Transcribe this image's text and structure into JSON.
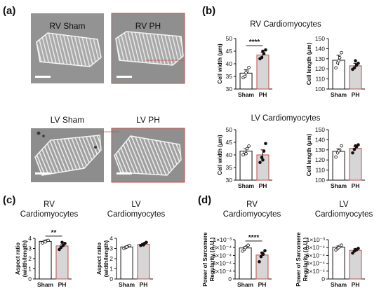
{
  "colors": {
    "sham_fill": "#ffffff",
    "ph_fill": "#d6d6d6",
    "ph_border": "#c0504d",
    "axis": "#111111",
    "micrograph_bg": "#8e8e8e"
  },
  "panels": {
    "a": {
      "letter": "(a)",
      "images": [
        {
          "label": "RV Sham"
        },
        {
          "label": "RV PH"
        },
        {
          "label": "LV Sham"
        },
        {
          "label": "LV PH"
        }
      ]
    },
    "b": {
      "letter": "(b)",
      "rv_title": "RV Cardiomyocytes",
      "lv_title": "LV Cardiomyocytes"
    },
    "c": {
      "letter": "(c)",
      "left_title_1": "RV",
      "left_title_2": "Cardiomyocytes",
      "right_title_1": "LV",
      "right_title_2": "Cardiomyocytes"
    },
    "d": {
      "letter": "(d)",
      "left_title_1": "RV",
      "left_title_2": "Cardiomyocytes",
      "right_title_1": "LV",
      "right_title_2": "Cardiomyocytes"
    }
  },
  "chart_data": [
    {
      "id": "rv-width",
      "type": "bar",
      "categories": [
        "Sham",
        "PH"
      ],
      "ylabel": "Cell width (μm)",
      "ylim": [
        30,
        50
      ],
      "yticks": [
        "30",
        "35",
        "40",
        "45",
        "50"
      ],
      "values": [
        36.3,
        43.5
      ],
      "errors": [
        1.3,
        1.0
      ],
      "points": [
        [
          34.5,
          35.0,
          37.0,
          38.5,
          36.5
        ],
        [
          42.0,
          42.5,
          44.0,
          45.5,
          45.0
        ]
      ],
      "significance": "****"
    },
    {
      "id": "rv-length",
      "type": "bar",
      "categories": [
        "Sham",
        "PH"
      ],
      "ylabel": "Cell length (μm)",
      "ylim": [
        100,
        150
      ],
      "yticks": [
        "100",
        "110",
        "120",
        "130",
        "140",
        "150"
      ],
      "values": [
        128.5,
        123.0
      ],
      "errors": [
        5.0,
        2.5
      ],
      "points": [
        [
          121.0,
          126.0,
          131.0,
          136.0,
          128.0
        ],
        [
          119.5,
          121.0,
          123.5,
          125.5,
          128.0
        ]
      ],
      "significance": ""
    },
    {
      "id": "lv-width",
      "type": "bar",
      "categories": [
        "Sham",
        "PH"
      ],
      "ylabel": "Cell width (μm)",
      "ylim": [
        30,
        50
      ],
      "yticks": [
        "30",
        "35",
        "40",
        "45",
        "50"
      ],
      "values": [
        41.5,
        40.0
      ],
      "errors": [
        1.0,
        2.0
      ],
      "points": [
        [
          40.0,
          41.0,
          42.5,
          43.5,
          40.5
        ],
        [
          37.0,
          39.0,
          41.5,
          44.5,
          38.0
        ]
      ],
      "significance": ""
    },
    {
      "id": "lv-length",
      "type": "bar",
      "categories": [
        "Sham",
        "PH"
      ],
      "ylabel": "Cell length (μm)",
      "ylim": [
        100,
        150
      ],
      "yticks": [
        "100",
        "110",
        "120",
        "130",
        "140",
        "150"
      ],
      "values": [
        128.5,
        131.5
      ],
      "errors": [
        2.5,
        2.0
      ],
      "points": [
        [
          123.0,
          127.0,
          130.0,
          134.0,
          129.0
        ],
        [
          127.0,
          130.5,
          133.0,
          135.0,
          134.0
        ]
      ],
      "significance": ""
    },
    {
      "id": "rv-aspect",
      "type": "bar",
      "categories": [
        "Sham",
        "PH"
      ],
      "ylabel_1": "Aspect ratio",
      "ylabel_2": "(width/length)",
      "ylim": [
        0,
        4
      ],
      "yticks": [
        "0",
        "1",
        "2",
        "3",
        "4"
      ],
      "values": [
        3.7,
        3.25
      ],
      "errors": [
        0.08,
        0.12
      ],
      "points": [
        [
          3.55,
          3.7,
          3.75,
          3.8,
          3.65
        ],
        [
          2.9,
          3.1,
          3.3,
          3.5,
          3.6
        ]
      ],
      "significance": "**"
    },
    {
      "id": "lv-aspect",
      "type": "bar",
      "categories": [
        "Sham",
        "PH"
      ],
      "ylabel_1": "Aspect ratio",
      "ylabel_2": "(width/length)",
      "ylim": [
        0,
        4
      ],
      "yticks": [
        "0",
        "1",
        "2",
        "3",
        "4"
      ],
      "values": [
        3.15,
        3.4
      ],
      "errors": [
        0.08,
        0.07
      ],
      "points": [
        [
          3.0,
          3.1,
          3.2,
          3.3,
          3.15
        ],
        [
          3.3,
          3.4,
          3.5,
          3.6,
          3.35
        ]
      ],
      "significance": ""
    },
    {
      "id": "rv-sarcomere",
      "type": "bar",
      "categories": [
        "Sham",
        "PH"
      ],
      "ylabel_1": "Power of Sarcomere",
      "ylabel_2": "Regularity (A.U.)",
      "ylim": [
        0,
        0.001
      ],
      "yticks": [
        "0",
        "2×10⁻⁴",
        "4×10⁻⁴",
        "6×10⁻⁴",
        "8×10⁻⁴",
        "1×10⁻³"
      ],
      "values": [
        0.00079,
        0.00061
      ],
      "errors": [
        3e-05,
        7e-05
      ],
      "points": [
        [
          0.00071,
          0.00075,
          0.00082,
          0.00086,
          0.0008
        ],
        [
          0.00044,
          0.00057,
          0.00063,
          0.00072,
          0.00066
        ]
      ],
      "significance": "****"
    },
    {
      "id": "lv-sarcomere",
      "type": "bar",
      "categories": [
        "Sham",
        "PH"
      ],
      "ylabel_1": "Power of Sarcomere",
      "ylabel_2": "Regularity (A.U.)",
      "ylim": [
        0,
        0.001
      ],
      "yticks": [
        "0",
        "2×10⁻⁴",
        "4×10⁻⁴",
        "6×10⁻⁴",
        "8×10⁻⁴",
        "1×10⁻³"
      ],
      "values": [
        0.00081,
        0.00073
      ],
      "errors": [
        3e-05,
        4e-05
      ],
      "points": [
        [
          0.00074,
          0.00078,
          0.00083,
          0.00086,
          0.0008
        ],
        [
          0.00066,
          0.00071,
          0.00074,
          0.00078,
          0.00075
        ]
      ],
      "significance": ""
    }
  ]
}
